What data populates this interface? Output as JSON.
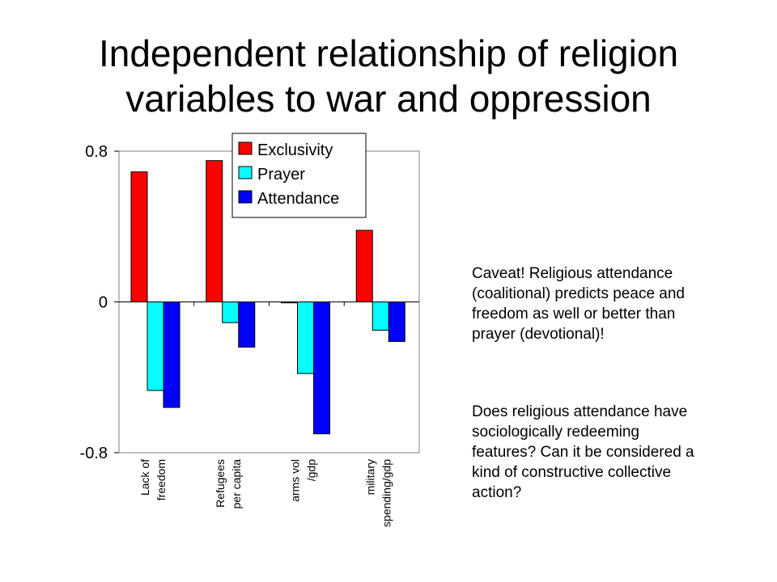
{
  "title": {
    "line1": "Independent relationship of religion",
    "line2": "variables to war and oppression"
  },
  "chart_data": {
    "type": "bar",
    "title": "",
    "xlabel": "",
    "ylabel": "",
    "ylim": [
      -0.8,
      0.8
    ],
    "yticks": [
      "0.8",
      "0",
      "-0.8"
    ],
    "ytick_values": [
      0.8,
      0,
      -0.8
    ],
    "categories": [
      [
        "Lack of",
        "freedom"
      ],
      [
        "Refugees",
        "per capita"
      ],
      [
        "arms vol",
        "/gdp"
      ],
      [
        "military",
        "spending/gdp"
      ]
    ],
    "series": [
      {
        "name": "Exclusivity",
        "color": "#ff0000",
        "values": [
          0.69,
          0.75,
          -0.005,
          0.38
        ]
      },
      {
        "name": "Prayer",
        "color": "#00ffff",
        "values": [
          -0.47,
          -0.11,
          -0.38,
          -0.15
        ]
      },
      {
        "name": "Attendance",
        "color": "#0000ff",
        "values": [
          -0.56,
          -0.24,
          -0.7,
          -0.21
        ]
      }
    ],
    "legend_position": "top-right",
    "grid": false
  },
  "notes": {
    "caveat": "Caveat!  Religious attendance (coalitional) predicts peace and freedom as well or better than prayer (devotional)!",
    "question": "Does religious attendance have sociologically redeeming features?  Can it be considered a kind of constructive collective action?"
  }
}
